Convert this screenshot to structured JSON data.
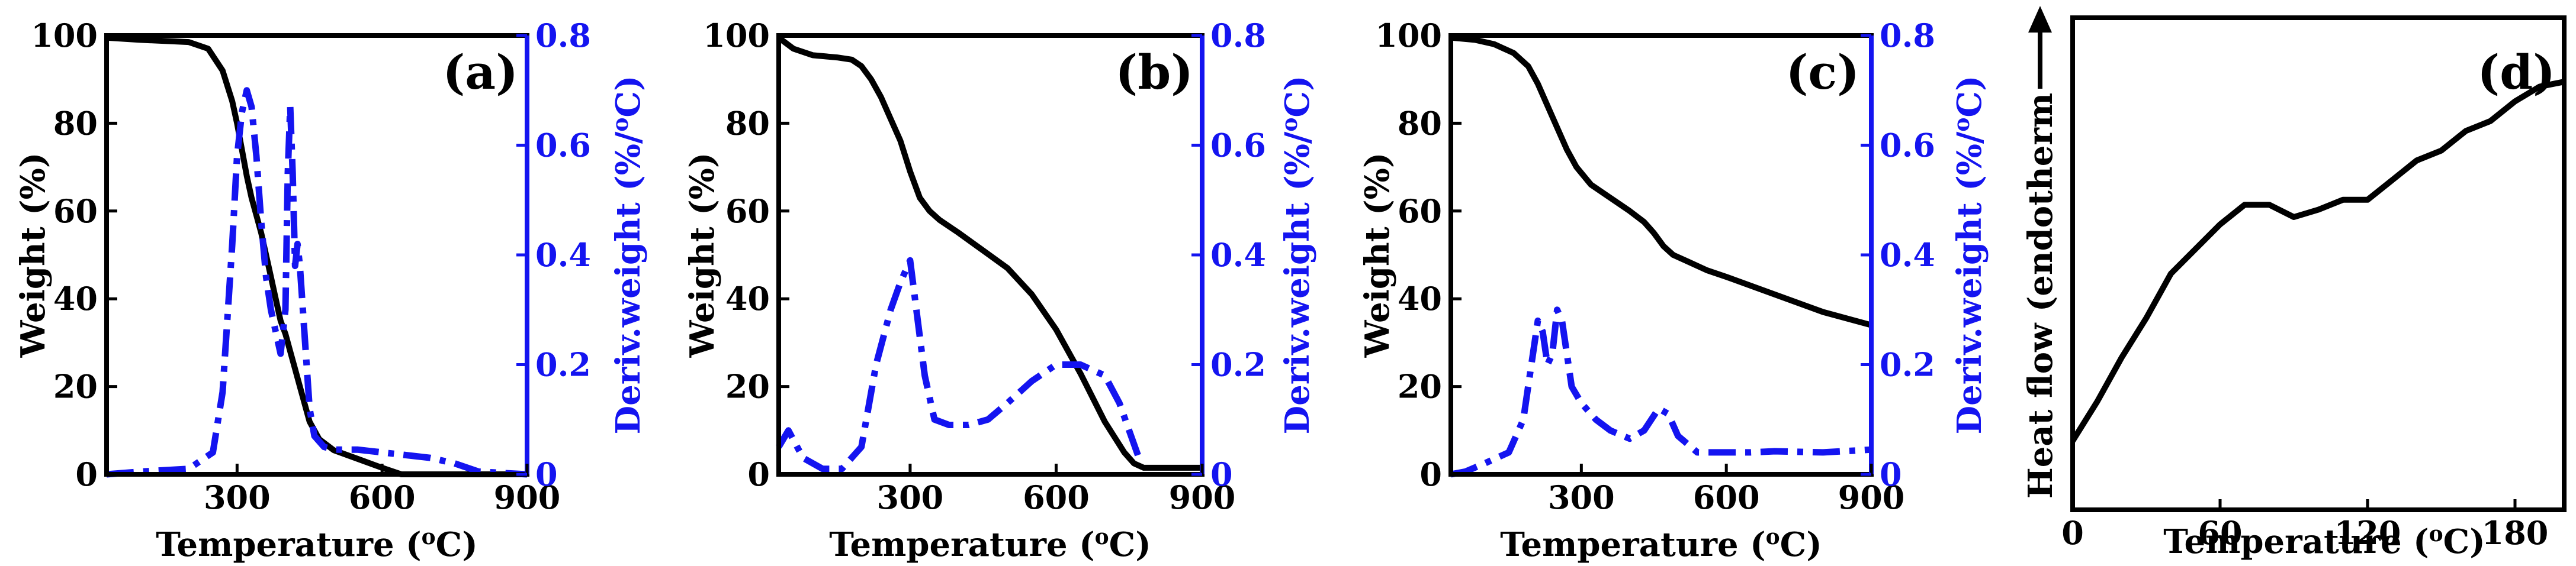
{
  "colors": {
    "primary": "#000000",
    "secondary": "#1414f0"
  },
  "chart_data": [
    {
      "id": "a",
      "type": "line",
      "panel_label": "(a)",
      "xlabel": "Temperature (oC)",
      "ylabel": "Weight (%)",
      "y2label": "Deriv.weight (%/oC)",
      "xlim": [
        30,
        900
      ],
      "ylim": [
        0,
        100
      ],
      "y2lim": [
        0,
        0.8
      ],
      "xticks": [
        300,
        600,
        900
      ],
      "yticks": [
        0,
        20,
        40,
        60,
        80,
        100
      ],
      "y2ticks": [
        0.0,
        0.2,
        0.4,
        0.6,
        0.8
      ],
      "series": [
        {
          "name": "Weight",
          "axis": "left",
          "style": "solid",
          "color": "#000000",
          "x": [
            30,
            100,
            200,
            240,
            270,
            290,
            300,
            310,
            320,
            330,
            340,
            350,
            360,
            370,
            380,
            390,
            400,
            410,
            420,
            430,
            440,
            450,
            470,
            500,
            550,
            600,
            640,
            680,
            900
          ],
          "y": [
            99.5,
            99,
            98.5,
            97,
            92,
            85,
            80,
            74,
            68,
            63,
            59,
            55,
            50,
            45,
            40,
            35,
            32,
            28,
            24,
            20,
            16,
            12,
            8,
            5.5,
            3.5,
            1.5,
            0,
            0,
            0
          ]
        },
        {
          "name": "Deriv. weight",
          "axis": "right",
          "style": "dashdot",
          "color": "#1414f0",
          "x": [
            30,
            100,
            200,
            250,
            270,
            290,
            300,
            310,
            320,
            330,
            340,
            350,
            360,
            370,
            380,
            390,
            400,
            405,
            410,
            415,
            420,
            425,
            430,
            440,
            450,
            460,
            480,
            500,
            550,
            600,
            700,
            750,
            800,
            900
          ],
          "y": [
            0,
            0.005,
            0.01,
            0.04,
            0.15,
            0.42,
            0.58,
            0.66,
            0.7,
            0.67,
            0.58,
            0.46,
            0.36,
            0.3,
            0.26,
            0.22,
            0.3,
            0.55,
            0.67,
            0.55,
            0.38,
            0.42,
            0.38,
            0.25,
            0.12,
            0.07,
            0.05,
            0.045,
            0.045,
            0.04,
            0.03,
            0.02,
            0.005,
            0
          ]
        }
      ]
    },
    {
      "id": "b",
      "type": "line",
      "panel_label": "(b)",
      "xlabel": "Temperature (oC)",
      "ylabel": "Weight (%)",
      "y2label": "Deriv.weight (%/oC)",
      "xlim": [
        30,
        900
      ],
      "ylim": [
        0,
        100
      ],
      "y2lim": [
        0,
        0.8
      ],
      "xticks": [
        300,
        600,
        900
      ],
      "yticks": [
        0,
        20,
        40,
        60,
        80,
        100
      ],
      "y2ticks": [
        0.0,
        0.2,
        0.4,
        0.6,
        0.8
      ],
      "series": [
        {
          "name": "Weight",
          "axis": "left",
          "style": "solid",
          "color": "#000000",
          "x": [
            30,
            60,
            100,
            150,
            180,
            200,
            220,
            240,
            260,
            280,
            300,
            320,
            340,
            360,
            380,
            400,
            450,
            500,
            550,
            600,
            650,
            700,
            740,
            760,
            780,
            800,
            900
          ],
          "y": [
            99.5,
            97,
            95.5,
            95,
            94.5,
            93,
            90,
            86,
            81,
            76,
            69,
            63,
            60,
            58,
            56.5,
            55,
            51,
            47,
            41,
            33,
            23,
            12,
            5,
            2.5,
            1.5,
            1.5,
            1.5
          ]
        },
        {
          "name": "Deriv. weight",
          "axis": "right",
          "style": "dashdot",
          "color": "#1414f0",
          "x": [
            30,
            50,
            80,
            120,
            160,
            200,
            230,
            260,
            280,
            300,
            310,
            330,
            350,
            380,
            420,
            460,
            500,
            550,
            600,
            650,
            700,
            730,
            750,
            770
          ],
          "y": [
            0.05,
            0.08,
            0.03,
            0.01,
            0.01,
            0.05,
            0.2,
            0.3,
            0.35,
            0.39,
            0.32,
            0.18,
            0.1,
            0.09,
            0.09,
            0.1,
            0.13,
            0.17,
            0.2,
            0.2,
            0.18,
            0.13,
            0.08,
            0.03
          ]
        }
      ]
    },
    {
      "id": "c",
      "type": "line",
      "panel_label": "(c)",
      "xlabel": "Temperature (oC)",
      "ylabel": "Weight (%)",
      "y2label": "Deriv.weight (%/oC)",
      "xlim": [
        30,
        900
      ],
      "ylim": [
        0,
        100
      ],
      "y2lim": [
        0,
        0.8
      ],
      "xticks": [
        300,
        600,
        900
      ],
      "yticks": [
        0,
        20,
        40,
        60,
        80,
        100
      ],
      "y2ticks": [
        0.0,
        0.2,
        0.4,
        0.6,
        0.8
      ],
      "series": [
        {
          "name": "Weight",
          "axis": "left",
          "style": "solid",
          "color": "#000000",
          "x": [
            30,
            80,
            120,
            160,
            190,
            210,
            230,
            250,
            270,
            290,
            320,
            360,
            400,
            430,
            450,
            470,
            490,
            520,
            560,
            600,
            700,
            800,
            900
          ],
          "y": [
            99.5,
            99,
            98,
            96,
            93,
            89,
            84,
            79,
            74,
            70,
            66,
            63,
            60,
            57.5,
            55,
            52,
            50,
            48.5,
            46.5,
            45,
            41,
            37,
            34
          ]
        },
        {
          "name": "Deriv. weight",
          "axis": "right",
          "style": "dashdot",
          "color": "#1414f0",
          "x": [
            30,
            60,
            100,
            150,
            180,
            200,
            210,
            220,
            230,
            240,
            250,
            260,
            270,
            280,
            300,
            330,
            360,
            400,
            430,
            460,
            480,
            500,
            540,
            580,
            650,
            700,
            800,
            900
          ],
          "y": [
            0,
            0.005,
            0.02,
            0.04,
            0.1,
            0.22,
            0.28,
            0.26,
            0.2,
            0.22,
            0.3,
            0.28,
            0.22,
            0.16,
            0.13,
            0.1,
            0.08,
            0.065,
            0.08,
            0.12,
            0.11,
            0.07,
            0.04,
            0.04,
            0.04,
            0.042,
            0.04,
            0.045
          ]
        }
      ]
    },
    {
      "id": "d",
      "type": "line",
      "panel_label": "(d)",
      "xlabel": "Temperature (oC)",
      "ylabel": "Heat flow (endotherm",
      "xlim": [
        0,
        200
      ],
      "ylim": [
        0,
        100
      ],
      "xticks": [
        0,
        60,
        120,
        180
      ],
      "series": [
        {
          "name": "Heat flow",
          "axis": "left",
          "style": "solid",
          "color": "#000000",
          "x": [
            0,
            10,
            20,
            30,
            40,
            50,
            60,
            70,
            80,
            90,
            100,
            110,
            120,
            130,
            140,
            150,
            160,
            170,
            180,
            190,
            200
          ],
          "y": [
            14,
            22,
            31,
            39,
            48,
            53,
            58,
            62,
            62,
            59.5,
            61,
            63,
            63,
            67,
            71,
            73,
            77,
            79,
            83,
            86,
            87
          ]
        }
      ]
    }
  ]
}
